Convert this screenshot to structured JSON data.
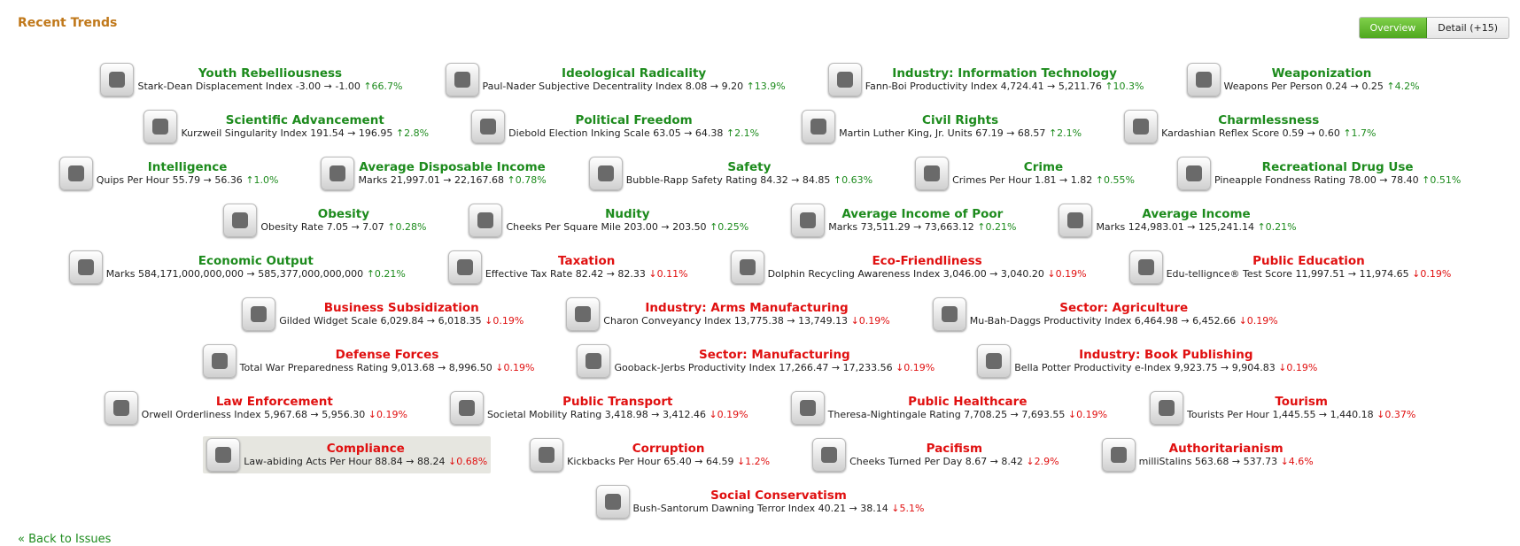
{
  "header": {
    "title": "Recent Trends",
    "tabs": [
      "Overview",
      "Detail (+15)"
    ]
  },
  "trends": {
    "rows": [
      [
        {
          "name": "Youth Rebelliousness",
          "metric": "Stark-Dean Displacement Index -3.00 → -1.00",
          "change": "↑66.7%"
        },
        {
          "name": "Ideological Radicality",
          "metric": "Paul-Nader Subjective Decentrality Index 8.08 → 9.20",
          "change": "↑13.9%"
        },
        {
          "name": "Industry: Information Technology",
          "metric": "Fann-Boi Productivity Index 4,724.41 → 5,211.76",
          "change": "↑10.3%"
        },
        {
          "name": "Weaponization",
          "metric": "Weapons Per Person 0.24 → 0.25",
          "change": "↑4.2%"
        }
      ],
      [
        {
          "name": "Scientific Advancement",
          "metric": "Kurzweil Singularity Index 191.54 → 196.95",
          "change": "↑2.8%"
        },
        {
          "name": "Political Freedom",
          "metric": "Diebold Election Inking Scale 63.05 → 64.38",
          "change": "↑2.1%"
        },
        {
          "name": "Civil Rights",
          "metric": "Martin Luther King, Jr. Units 67.19 → 68.57",
          "change": "↑2.1%"
        },
        {
          "name": "Charmlessness",
          "metric": "Kardashian Reflex Score 0.59 → 0.60",
          "change": "↑1.7%"
        }
      ],
      [
        {
          "name": "Intelligence",
          "metric": "Quips Per Hour 55.79 → 56.36",
          "change": "↑1.0%"
        },
        {
          "name": "Average Disposable Income",
          "metric": "Marks 21,997.01 → 22,167.68",
          "change": "↑0.78%"
        },
        {
          "name": "Safety",
          "metric": "Bubble-Rapp Safety Rating 84.32 → 84.85",
          "change": "↑0.63%"
        },
        {
          "name": "Crime",
          "metric": "Crimes Per Hour 1.81 → 1.82",
          "change": "↑0.55%"
        },
        {
          "name": "Recreational Drug Use",
          "metric": "Pineapple Fondness Rating 78.00 → 78.40",
          "change": "↑0.51%"
        }
      ],
      [
        {
          "name": "Obesity",
          "metric": "Obesity Rate 7.05 → 7.07",
          "change": "↑0.28%"
        },
        {
          "name": "Nudity",
          "metric": "Cheeks Per Square Mile 203.00 → 203.50",
          "change": "↑0.25%"
        },
        {
          "name": "Average Income of Poor",
          "metric": "Marks 73,511.29 → 73,663.12",
          "change": "↑0.21%"
        },
        {
          "name": "Average Income",
          "metric": "Marks 124,983.01 → 125,241.14",
          "change": "↑0.21%"
        }
      ],
      [
        {
          "name": "Economic Output",
          "metric": "Marks 584,171,000,000,000 → 585,377,000,000,000",
          "change": "↑0.21%"
        },
        {
          "name": "Taxation",
          "metric": "Effective Tax Rate 82.42 → 82.33",
          "change": "↓0.11%"
        },
        {
          "name": "Eco-Friendliness",
          "metric": "Dolphin Recycling Awareness Index 3,046.00 → 3,040.20",
          "change": "↓0.19%"
        },
        {
          "name": "Public Education",
          "metric": "Edu-tellignce® Test Score 11,997.51 → 11,974.65",
          "change": "↓0.19%"
        }
      ],
      [
        {
          "name": "Business Subsidization",
          "metric": "Gilded Widget Scale 6,029.84 → 6,018.35",
          "change": "↓0.19%"
        },
        {
          "name": "Industry: Arms Manufacturing",
          "metric": "Charon Conveyancy Index 13,775.38 → 13,749.13",
          "change": "↓0.19%"
        },
        {
          "name": "Sector: Agriculture",
          "metric": "Mu-Bah-Daggs Productivity Index 6,464.98 → 6,452.66",
          "change": "↓0.19%"
        }
      ],
      [
        {
          "name": "Defense Forces",
          "metric": "Total War Preparedness Rating 9,013.68 → 8,996.50",
          "change": "↓0.19%"
        },
        {
          "name": "Sector: Manufacturing",
          "metric": "Gooback-Jerbs Productivity Index 17,266.47 → 17,233.56",
          "change": "↓0.19%"
        },
        {
          "name": "Industry: Book Publishing",
          "metric": "Bella Potter Productivity e-Index 9,923.75 → 9,904.83",
          "change": "↓0.19%"
        }
      ],
      [
        {
          "name": "Law Enforcement",
          "metric": "Orwell Orderliness Index 5,967.68 → 5,956.30",
          "change": "↓0.19%"
        },
        {
          "name": "Public Transport",
          "metric": "Societal Mobility Rating 3,418.98 → 3,412.46",
          "change": "↓0.19%"
        },
        {
          "name": "Public Healthcare",
          "metric": "Theresa-Nightingale Rating 7,708.25 → 7,693.55",
          "change": "↓0.19%"
        },
        {
          "name": "Tourism",
          "metric": "Tourists Per Hour 1,445.55 → 1,440.18",
          "change": "↓0.37%"
        }
      ],
      [
        {
          "name": "Compliance",
          "metric": "Law-abiding Acts Per Hour 88.84 → 88.24",
          "change": "↓0.68%"
        },
        {
          "name": "Corruption",
          "metric": "Kickbacks Per Hour 65.40 → 64.59",
          "change": "↓1.2%"
        },
        {
          "name": "Pacifism",
          "metric": "Cheeks Turned Per Day 8.67 → 8.42",
          "change": "↓2.9%"
        },
        {
          "name": "Authoritarianism",
          "metric": "milliStalins 563.68 → 537.73",
          "change": "↓4.6%"
        }
      ],
      [
        {
          "name": "Social Conservatism",
          "metric": "Bush-Santorum Dawning Terror Index 40.21 → 38.14",
          "change": "↓5.1%"
        }
      ]
    ]
  },
  "footer": {
    "back": "« Back to",
    "link": "Issues"
  }
}
